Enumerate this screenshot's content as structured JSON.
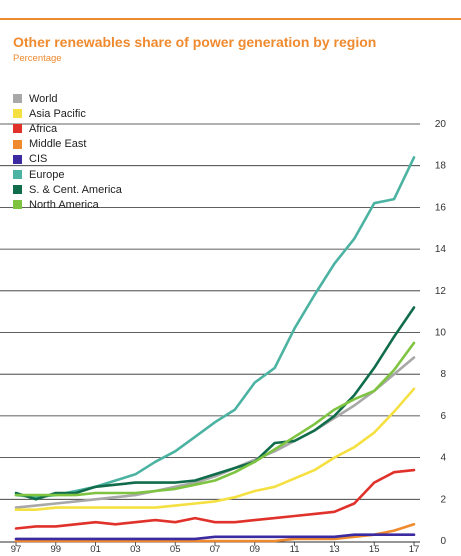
{
  "header": {
    "title": "Other renewables share of power generation by region",
    "subtitle": "Percentage"
  },
  "colors": {
    "accent": "#ef8a2f",
    "grid": "#2b2b2b",
    "tick": "#333333"
  },
  "chart_data": {
    "type": "line",
    "title": "Other renewables share of power generation by region",
    "subtitle": "Percentage",
    "xlabel": "",
    "ylabel": "",
    "x": [
      1997,
      1998,
      1999,
      2000,
      2001,
      2002,
      2003,
      2004,
      2005,
      2006,
      2007,
      2008,
      2009,
      2010,
      2011,
      2012,
      2013,
      2014,
      2015,
      2016,
      2017
    ],
    "x_tick_labels": [
      "97",
      "99",
      "01",
      "03",
      "05",
      "07",
      "09",
      "11",
      "13",
      "15",
      "17"
    ],
    "y_ticks": [
      0,
      2,
      4,
      6,
      8,
      10,
      12,
      14,
      16,
      18,
      20
    ],
    "ylim": [
      0,
      20
    ],
    "y_axis_position": "right",
    "grid": true,
    "legend_position": "top-left",
    "series": [
      {
        "name": "World",
        "color": "#a8a8a8",
        "values": [
          1.6,
          1.7,
          1.8,
          1.9,
          2.0,
          2.1,
          2.2,
          2.4,
          2.6,
          2.8,
          3.1,
          3.5,
          3.9,
          4.3,
          4.8,
          5.3,
          5.9,
          6.5,
          7.2,
          8.0,
          8.8
        ]
      },
      {
        "name": "Asia Pacific",
        "color": "#f5e042",
        "values": [
          1.5,
          1.5,
          1.6,
          1.6,
          1.6,
          1.6,
          1.6,
          1.6,
          1.7,
          1.8,
          1.9,
          2.1,
          2.4,
          2.6,
          3.0,
          3.4,
          4.0,
          4.5,
          5.2,
          6.2,
          7.3
        ]
      },
      {
        "name": "Africa",
        "color": "#e0312b",
        "values": [
          0.6,
          0.7,
          0.7,
          0.8,
          0.9,
          0.8,
          0.9,
          1.0,
          0.9,
          1.1,
          0.9,
          0.9,
          1.0,
          1.1,
          1.2,
          1.3,
          1.4,
          1.8,
          2.8,
          3.3,
          3.4
        ]
      },
      {
        "name": "Middle East",
        "color": "#ef8a2f",
        "values": [
          0.0,
          0.0,
          0.0,
          0.0,
          0.0,
          0.0,
          0.0,
          0.0,
          0.0,
          0.0,
          0.0,
          0.0,
          0.0,
          0.0,
          0.1,
          0.1,
          0.1,
          0.2,
          0.3,
          0.5,
          0.8
        ]
      },
      {
        "name": "CIS",
        "color": "#3b2aa0",
        "values": [
          0.1,
          0.1,
          0.1,
          0.1,
          0.1,
          0.1,
          0.1,
          0.1,
          0.1,
          0.1,
          0.2,
          0.2,
          0.2,
          0.2,
          0.2,
          0.2,
          0.2,
          0.3,
          0.3,
          0.3,
          0.3
        ]
      },
      {
        "name": "Europe",
        "color": "#4cb3a2",
        "values": [
          2.2,
          2.1,
          2.2,
          2.4,
          2.6,
          2.9,
          3.2,
          3.8,
          4.3,
          5.0,
          5.7,
          6.3,
          7.6,
          8.3,
          10.2,
          11.8,
          13.3,
          14.5,
          16.2,
          16.4,
          18.4
        ]
      },
      {
        "name": "S. & Cent. America",
        "color": "#106c4a",
        "values": [
          2.3,
          2.0,
          2.3,
          2.3,
          2.6,
          2.7,
          2.8,
          2.8,
          2.8,
          2.9,
          3.2,
          3.5,
          3.8,
          4.7,
          4.8,
          5.3,
          6.0,
          7.0,
          8.3,
          9.8,
          11.2
        ]
      },
      {
        "name": "North America",
        "color": "#7ec440",
        "values": [
          2.2,
          2.2,
          2.2,
          2.2,
          2.3,
          2.3,
          2.3,
          2.4,
          2.5,
          2.7,
          2.9,
          3.3,
          3.8,
          4.4,
          5.0,
          5.6,
          6.3,
          6.8,
          7.2,
          8.2,
          9.5
        ]
      }
    ]
  }
}
